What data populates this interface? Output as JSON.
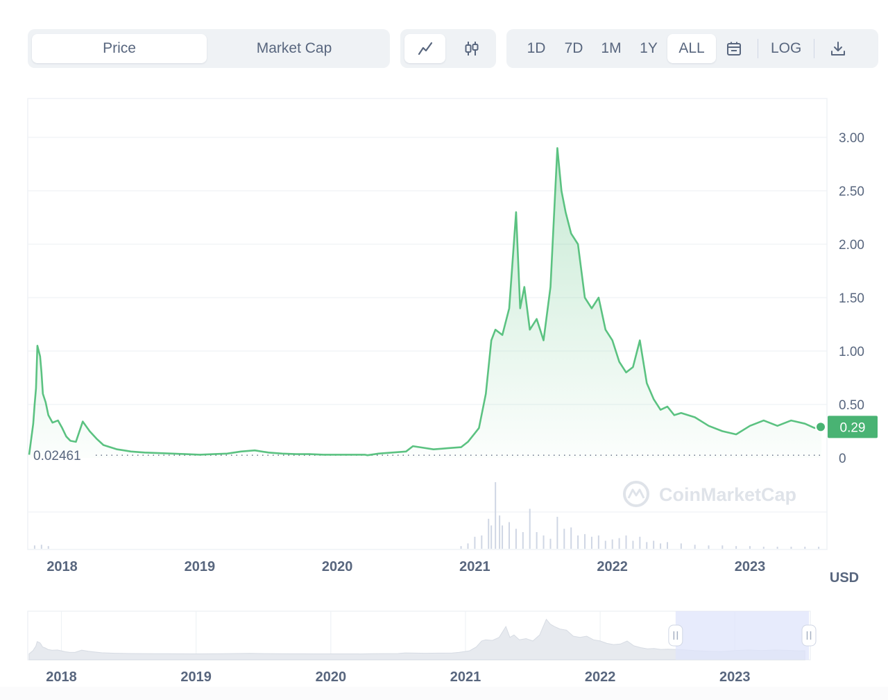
{
  "toggle": {
    "price_label": "Price",
    "market_cap_label": "Market Cap",
    "active": "price"
  },
  "chart_types": [
    {
      "icon": "line-chart-icon",
      "active": true
    },
    {
      "icon": "candlestick-icon",
      "active": false
    }
  ],
  "ranges": [
    "1D",
    "7D",
    "1M",
    "1Y",
    "ALL"
  ],
  "active_range": "ALL",
  "log_label": "LOG",
  "currency_label": "USD",
  "watermark": "CoinMarketCap",
  "min_label": "0.02461",
  "current_price_label": "0.29",
  "colors": {
    "line": "#5bc281",
    "red": "#ea3943",
    "badge": "#49b373",
    "grid": "#eff2f5",
    "text": "#58667e",
    "selection": "#e8ebfb"
  },
  "chart_data": {
    "type": "line",
    "title": "",
    "xlabel": "",
    "ylabel": "",
    "currency": "USD",
    "x_ticks": [
      "2018",
      "2019",
      "2020",
      "2021",
      "2022",
      "2023"
    ],
    "y_ticks": [
      "0",
      "0.50",
      "1.00",
      "1.50",
      "2.00",
      "2.50",
      "3.00"
    ],
    "ylim": [
      0,
      3.0
    ],
    "xlim": [
      2017.75,
      2023.56
    ],
    "grid": true,
    "min_value": 0.02461,
    "current_value": 0.29,
    "series": [
      {
        "x": [
          2017.76,
          2017.79,
          2017.8,
          2017.81,
          2017.82,
          2017.84,
          2017.85,
          2017.86,
          2017.88,
          2017.9,
          2017.93,
          2017.97,
          2018.0,
          2018.03,
          2018.06,
          2018.1,
          2018.15,
          2018.2,
          2018.25,
          2018.3,
          2018.35,
          2018.4,
          2018.45,
          2018.5,
          2018.6,
          2018.7,
          2018.8,
          2018.9,
          2019.0,
          2019.1,
          2019.2,
          2019.3,
          2019.4,
          2019.5,
          2019.6,
          2019.7,
          2019.8,
          2019.9,
          2020.0,
          2020.1,
          2020.2,
          2020.22,
          2020.3,
          2020.4,
          2020.5,
          2020.55,
          2020.6,
          2020.7,
          2020.8,
          2020.9,
          2020.95,
          2021.0,
          2021.03,
          2021.08,
          2021.12,
          2021.15,
          2021.2,
          2021.25,
          2021.3,
          2021.33,
          2021.36,
          2021.4,
          2021.45,
          2021.5,
          2021.55,
          2021.6,
          2021.63,
          2021.66,
          2021.7,
          2021.75,
          2021.8,
          2021.85,
          2021.9,
          2021.95,
          2022.0,
          2022.05,
          2022.1,
          2022.15,
          2022.2,
          2022.25,
          2022.3,
          2022.35,
          2022.4,
          2022.45,
          2022.5,
          2022.6,
          2022.7,
          2022.8,
          2022.9,
          2023.0,
          2023.1,
          2023.2,
          2023.3,
          2023.4,
          2023.47,
          2023.52
        ],
        "y": [
          0.03,
          0.32,
          0.5,
          0.65,
          1.05,
          0.95,
          0.8,
          0.6,
          0.52,
          0.4,
          0.33,
          0.35,
          0.28,
          0.2,
          0.16,
          0.15,
          0.34,
          0.25,
          0.18,
          0.12,
          0.1,
          0.08,
          0.07,
          0.06,
          0.05,
          0.045,
          0.04,
          0.035,
          0.03,
          0.035,
          0.04,
          0.06,
          0.07,
          0.05,
          0.04,
          0.035,
          0.035,
          0.03,
          0.03,
          0.03,
          0.03,
          0.02461,
          0.04,
          0.05,
          0.06,
          0.11,
          0.1,
          0.08,
          0.09,
          0.1,
          0.15,
          0.23,
          0.28,
          0.6,
          1.1,
          1.2,
          1.15,
          1.4,
          2.3,
          1.4,
          1.6,
          1.2,
          1.3,
          1.1,
          1.6,
          2.9,
          2.5,
          2.3,
          2.1,
          2.0,
          1.5,
          1.4,
          1.5,
          1.2,
          1.1,
          0.9,
          0.8,
          0.85,
          1.1,
          0.7,
          0.55,
          0.45,
          0.48,
          0.4,
          0.42,
          0.38,
          0.3,
          0.25,
          0.22,
          0.3,
          0.35,
          0.3,
          0.35,
          0.32,
          0.28,
          0.29
        ]
      }
    ],
    "volume_note": "relative trading volume bars"
  },
  "volume_data": {
    "x": [
      2017.8,
      2017.85,
      2017.9,
      2020.9,
      2020.95,
      2021.0,
      2021.05,
      2021.1,
      2021.12,
      2021.15,
      2021.18,
      2021.2,
      2021.25,
      2021.3,
      2021.35,
      2021.4,
      2021.45,
      2021.5,
      2021.55,
      2021.6,
      2021.65,
      2021.7,
      2021.75,
      2021.8,
      2021.85,
      2021.9,
      2021.95,
      2022.0,
      2022.05,
      2022.1,
      2022.15,
      2022.2,
      2022.25,
      2022.3,
      2022.35,
      2022.4,
      2022.5,
      2022.6,
      2022.7,
      2022.8,
      2022.9,
      2023.0,
      2023.1,
      2023.2,
      2023.3,
      2023.4,
      2023.5
    ],
    "v": [
      0.05,
      0.06,
      0.04,
      0.04,
      0.08,
      0.18,
      0.2,
      0.45,
      0.35,
      1.0,
      0.5,
      0.35,
      0.4,
      0.3,
      0.25,
      0.6,
      0.25,
      0.2,
      0.15,
      0.48,
      0.3,
      0.32,
      0.2,
      0.22,
      0.18,
      0.2,
      0.12,
      0.14,
      0.16,
      0.2,
      0.12,
      0.18,
      0.1,
      0.12,
      0.08,
      0.1,
      0.08,
      0.06,
      0.05,
      0.05,
      0.04,
      0.04,
      0.03,
      0.03,
      0.03,
      0.03,
      0.03
    ]
  },
  "navigator": {
    "x_ticks": [
      "2018",
      "2019",
      "2020",
      "2021",
      "2022",
      "2023"
    ],
    "selection": [
      2022.56,
      2023.56
    ]
  }
}
